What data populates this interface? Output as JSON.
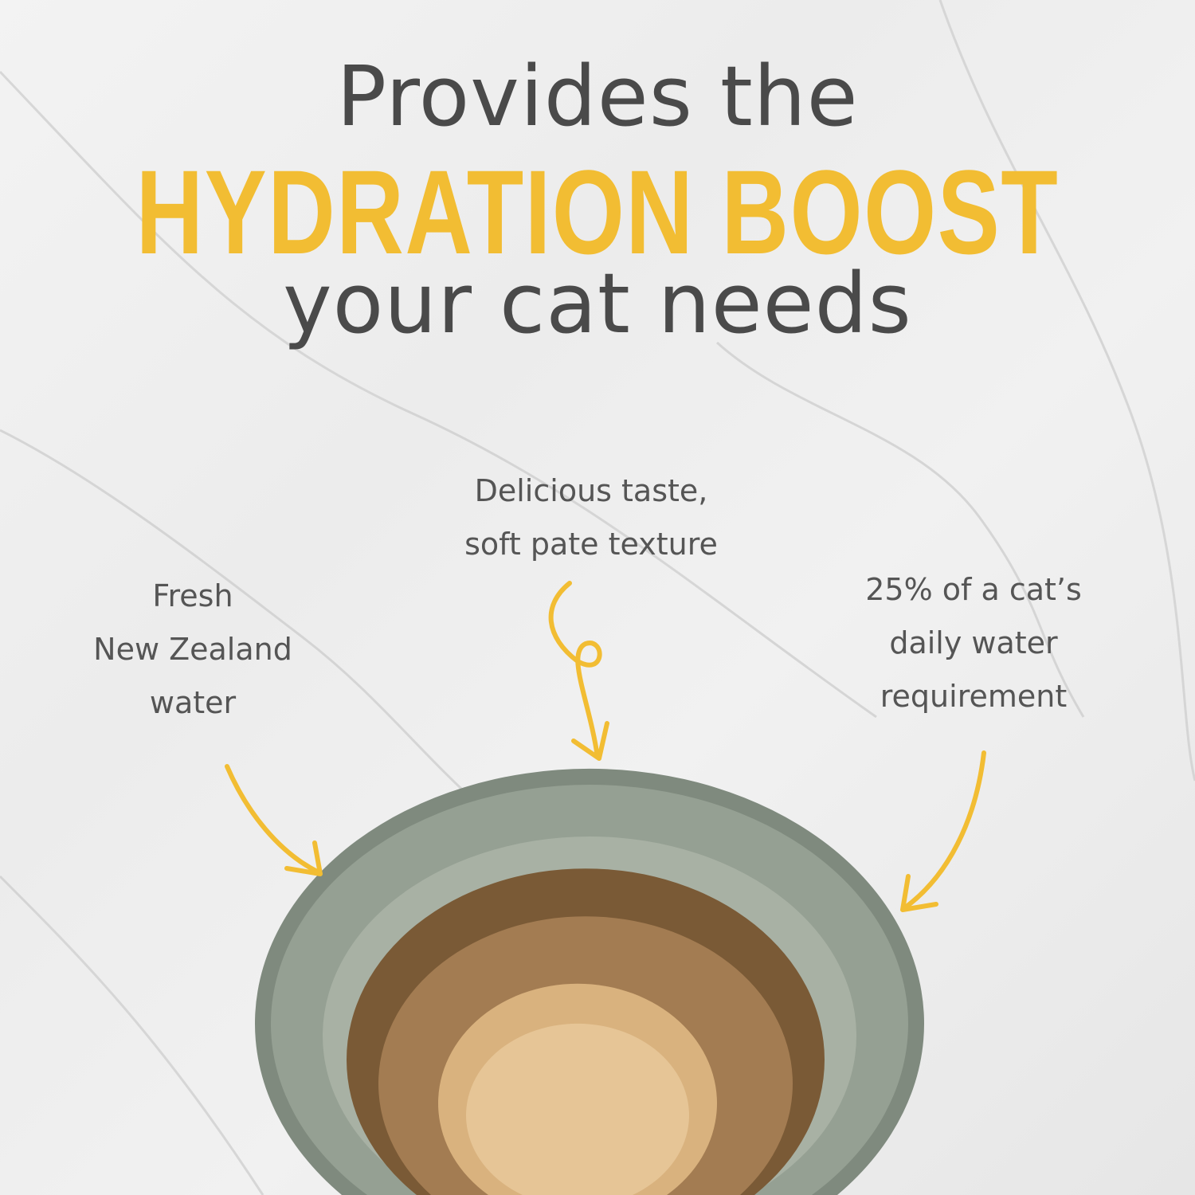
{
  "headline": {
    "line1": "Provides the",
    "line2": "HYDRATION BOOST",
    "line3": "your cat needs"
  },
  "callouts": {
    "taste": [
      "Delicious taste,",
      "soft pate texture"
    ],
    "water": [
      "Fresh",
      "New Zealand",
      "water"
    ],
    "requirement": [
      "25% of a cat’s",
      "daily water",
      "requirement"
    ]
  },
  "colors": {
    "accent": "#f2bd33",
    "text": "#4a4a4a",
    "bowl": "#8e998c"
  }
}
